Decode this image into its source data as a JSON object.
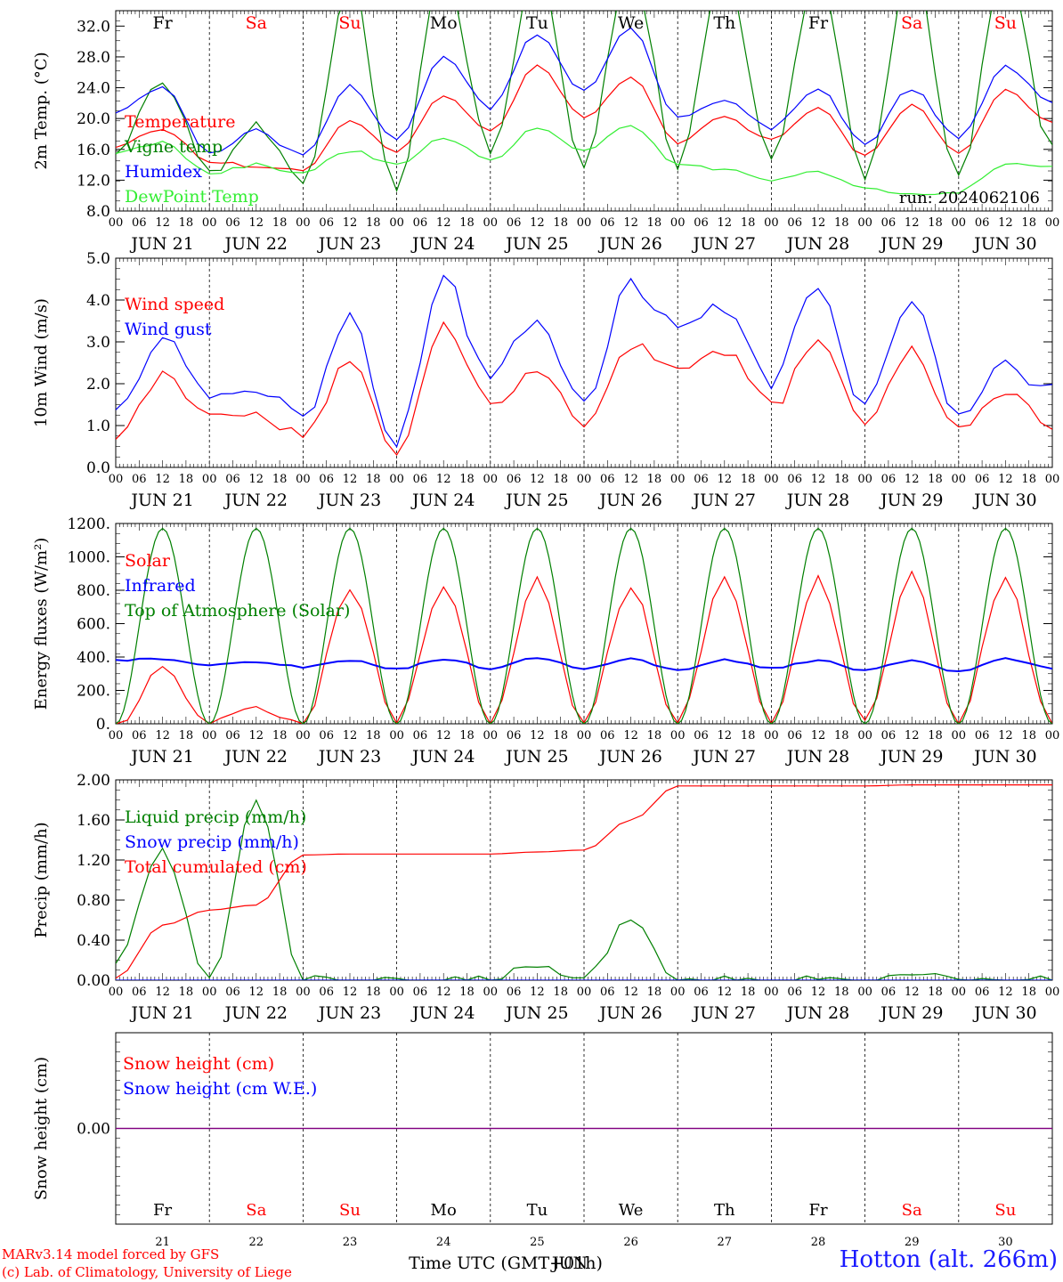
{
  "run_label": "run: 2024062106",
  "station": "Hotton (alt. 266m)",
  "credits": [
    "MARv3.14 model forced by GFS",
    "(c) Lab. of Climatology, University of Liege"
  ],
  "time_axis_label": "Time UTC (GMT+01h)",
  "overlap_label": "JUN",
  "hour_ticks": [
    "00",
    "06",
    "12",
    "18"
  ],
  "day_labels": [
    "JUN 21",
    "JUN 22",
    "JUN 23",
    "JUN 24",
    "JUN 25",
    "JUN 26",
    "JUN 27",
    "JUN 28",
    "JUN 29",
    "JUN 30"
  ],
  "day_numbers": [
    "21",
    "22",
    "23",
    "24",
    "25",
    "26",
    "27",
    "28",
    "29",
    "30"
  ],
  "weekdays": [
    {
      "label": "Fr",
      "weekend": false
    },
    {
      "label": "Sa",
      "weekend": true
    },
    {
      "label": "Su",
      "weekend": true
    },
    {
      "label": "Mo",
      "weekend": false
    },
    {
      "label": "Tu",
      "weekend": false
    },
    {
      "label": "We",
      "weekend": false
    },
    {
      "label": "Th",
      "weekend": false
    },
    {
      "label": "Fr",
      "weekend": false
    },
    {
      "label": "Sa",
      "weekend": true
    },
    {
      "label": "Su",
      "weekend": true
    }
  ],
  "colors": {
    "red": "#ff0000",
    "green": "#008000",
    "blue": "#0000ff",
    "lightgreen": "#33ee33",
    "purple": "#800080",
    "axis": "#000000"
  },
  "chart_data": [
    {
      "type": "line",
      "ylabel": "2m Temp. (°C)",
      "ylim": [
        8,
        34
      ],
      "yticks": [
        "8.0",
        "12.0",
        "16.0",
        "20.0",
        "24.0",
        "28.0",
        "32.0"
      ],
      "x_hours": [
        0,
        12,
        24,
        36,
        48,
        60,
        72,
        84,
        96,
        108,
        120,
        132,
        144,
        156,
        168,
        180,
        192,
        204,
        216,
        228,
        240
      ],
      "series": [
        {
          "name": "Temperature",
          "color": "#ff0000",
          "values": [
            16.5,
            18.6,
            14.5,
            13.6,
            13.4,
            19.8,
            15.8,
            23.0,
            18.3,
            26.8,
            20.2,
            25.3,
            16.8,
            20.2,
            17.3,
            21.2,
            15.2,
            21.8,
            15.4,
            23.6,
            19.5
          ]
        },
        {
          "name": "Vigne temp",
          "color": "#008000",
          "values": [
            15.5,
            24.8,
            12.8,
            19.0,
            11.8,
            37.0,
            11.0,
            40.0,
            16.0,
            39.0,
            14.0,
            40.0,
            14.5,
            40.0,
            15.0,
            38.0,
            12.0,
            40.0,
            12.5,
            40.0,
            15.5
          ]
        },
        {
          "name": "Humidex",
          "color": "#0000ff",
          "values": [
            21.0,
            24.0,
            15.5,
            18.5,
            15.2,
            24.2,
            17.0,
            27.8,
            21.5,
            31.0,
            23.5,
            32.0,
            20.0,
            22.5,
            18.8,
            23.8,
            16.8,
            23.8,
            17.5,
            26.8,
            22.0
          ]
        },
        {
          "name": "DewPoint Temp",
          "color": "#33ee33",
          "values": [
            15.5,
            17.0,
            13.0,
            14.0,
            13.0,
            15.8,
            14.0,
            17.5,
            14.5,
            18.8,
            16.0,
            19.0,
            14.0,
            13.5,
            12.0,
            13.0,
            11.0,
            10.0,
            10.5,
            14.0,
            14.0
          ]
        }
      ]
    },
    {
      "type": "line",
      "ylabel": "10m Wind (m/s)",
      "ylim": [
        0,
        5
      ],
      "yticks": [
        "0.0",
        "1.0",
        "2.0",
        "3.0",
        "4.0",
        "5.0"
      ],
      "x_hours": [
        0,
        12,
        24,
        36,
        48,
        60,
        72,
        84,
        96,
        108,
        120,
        132,
        144,
        156,
        168,
        180,
        192,
        204,
        216,
        228,
        240
      ],
      "series": [
        {
          "name": "Wind speed",
          "color": "#ff0000",
          "values": [
            0.6,
            2.2,
            1.3,
            1.2,
            0.7,
            2.6,
            0.3,
            3.3,
            1.6,
            2.3,
            1.0,
            2.9,
            2.4,
            2.8,
            1.5,
            3.0,
            1.0,
            2.8,
            0.9,
            1.8,
            1.0
          ]
        },
        {
          "name": "Wind gust",
          "color": "#0000ff",
          "values": [
            1.3,
            3.0,
            1.8,
            1.8,
            1.2,
            3.5,
            0.6,
            4.5,
            2.2,
            3.5,
            1.5,
            4.4,
            3.3,
            3.8,
            2.0,
            4.4,
            1.5,
            3.9,
            1.2,
            2.5,
            1.8
          ]
        }
      ]
    },
    {
      "type": "line",
      "ylabel": "Energy fluxes (W/m²)",
      "ylim": [
        0,
        1200
      ],
      "yticks": [
        "0.",
        "200.",
        "400.",
        "600.",
        "800.",
        "1000.",
        "1200."
      ],
      "x_hours": [
        0,
        12,
        24,
        36,
        48,
        60,
        72,
        84,
        96,
        108,
        120,
        132,
        144,
        156,
        168,
        180,
        192,
        204,
        216,
        228,
        240
      ],
      "series": [
        {
          "name": "Solar",
          "color": "#ff0000",
          "values": [
            0,
            330,
            0,
            110,
            0,
            820,
            0,
            820,
            0,
            870,
            0,
            820,
            0,
            880,
            0,
            870,
            0,
            890,
            0,
            870,
            0
          ]
        },
        {
          "name": "Infrared",
          "color": "#0000ff",
          "values": [
            380,
            390,
            350,
            370,
            340,
            380,
            330,
            390,
            330,
            400,
            330,
            390,
            320,
            380,
            330,
            380,
            320,
            380,
            310,
            390,
            330
          ]
        },
        {
          "name": "Top of Atmosphere (Solar)",
          "color": "#008000",
          "values": [
            0,
            1170,
            0,
            1170,
            0,
            1170,
            0,
            1170,
            0,
            1170,
            0,
            1170,
            0,
            1170,
            0,
            1170,
            0,
            1170,
            0,
            1170,
            0
          ]
        }
      ]
    },
    {
      "type": "line",
      "ylabel": "Precip (mm/h)",
      "ylim": [
        0,
        2
      ],
      "yticks": [
        "0.00",
        "0.40",
        "0.80",
        "1.20",
        "1.60",
        "2.00"
      ],
      "x_hours": [
        0,
        12,
        24,
        36,
        48,
        60,
        72,
        84,
        96,
        108,
        120,
        132,
        144,
        156,
        168,
        180,
        192,
        204,
        216,
        228,
        240
      ],
      "series": [
        {
          "name": "Liquid precip (mm/h)",
          "color": "#008000",
          "values": [
            0.2,
            1.3,
            0.0,
            1.8,
            0.0,
            0.0,
            0.0,
            0.0,
            0.0,
            0.15,
            0.0,
            0.65,
            0.0,
            0.0,
            0.0,
            0.0,
            0.0,
            0.05,
            0.0,
            0.0,
            0.0
          ]
        },
        {
          "name": "Snow precip (mm/h)",
          "color": "#0000ff",
          "values": [
            0,
            0,
            0,
            0,
            0,
            0,
            0,
            0,
            0,
            0,
            0,
            0,
            0,
            0,
            0,
            0,
            0,
            0,
            0,
            0,
            0
          ]
        },
        {
          "name": "Total cumulated (cm)",
          "color": "#ff0000",
          "values": [
            0.02,
            0.55,
            0.7,
            0.75,
            1.25,
            1.26,
            1.26,
            1.26,
            1.26,
            1.28,
            1.3,
            1.6,
            1.94,
            1.94,
            1.94,
            1.94,
            1.94,
            1.95,
            1.95,
            1.95,
            1.95
          ]
        }
      ]
    },
    {
      "type": "line",
      "ylabel": "Snow height (cm)",
      "ylim": [
        -1,
        1
      ],
      "yticks": [
        "0.00"
      ],
      "x_hours": [
        0,
        240
      ],
      "series": [
        {
          "name": "Snow height (cm)",
          "color": "#ff0000",
          "values": [
            0,
            0
          ]
        },
        {
          "name": "Snow height (cm W.E.)",
          "color": "#0000ff",
          "values": [
            0,
            0
          ]
        }
      ]
    }
  ]
}
